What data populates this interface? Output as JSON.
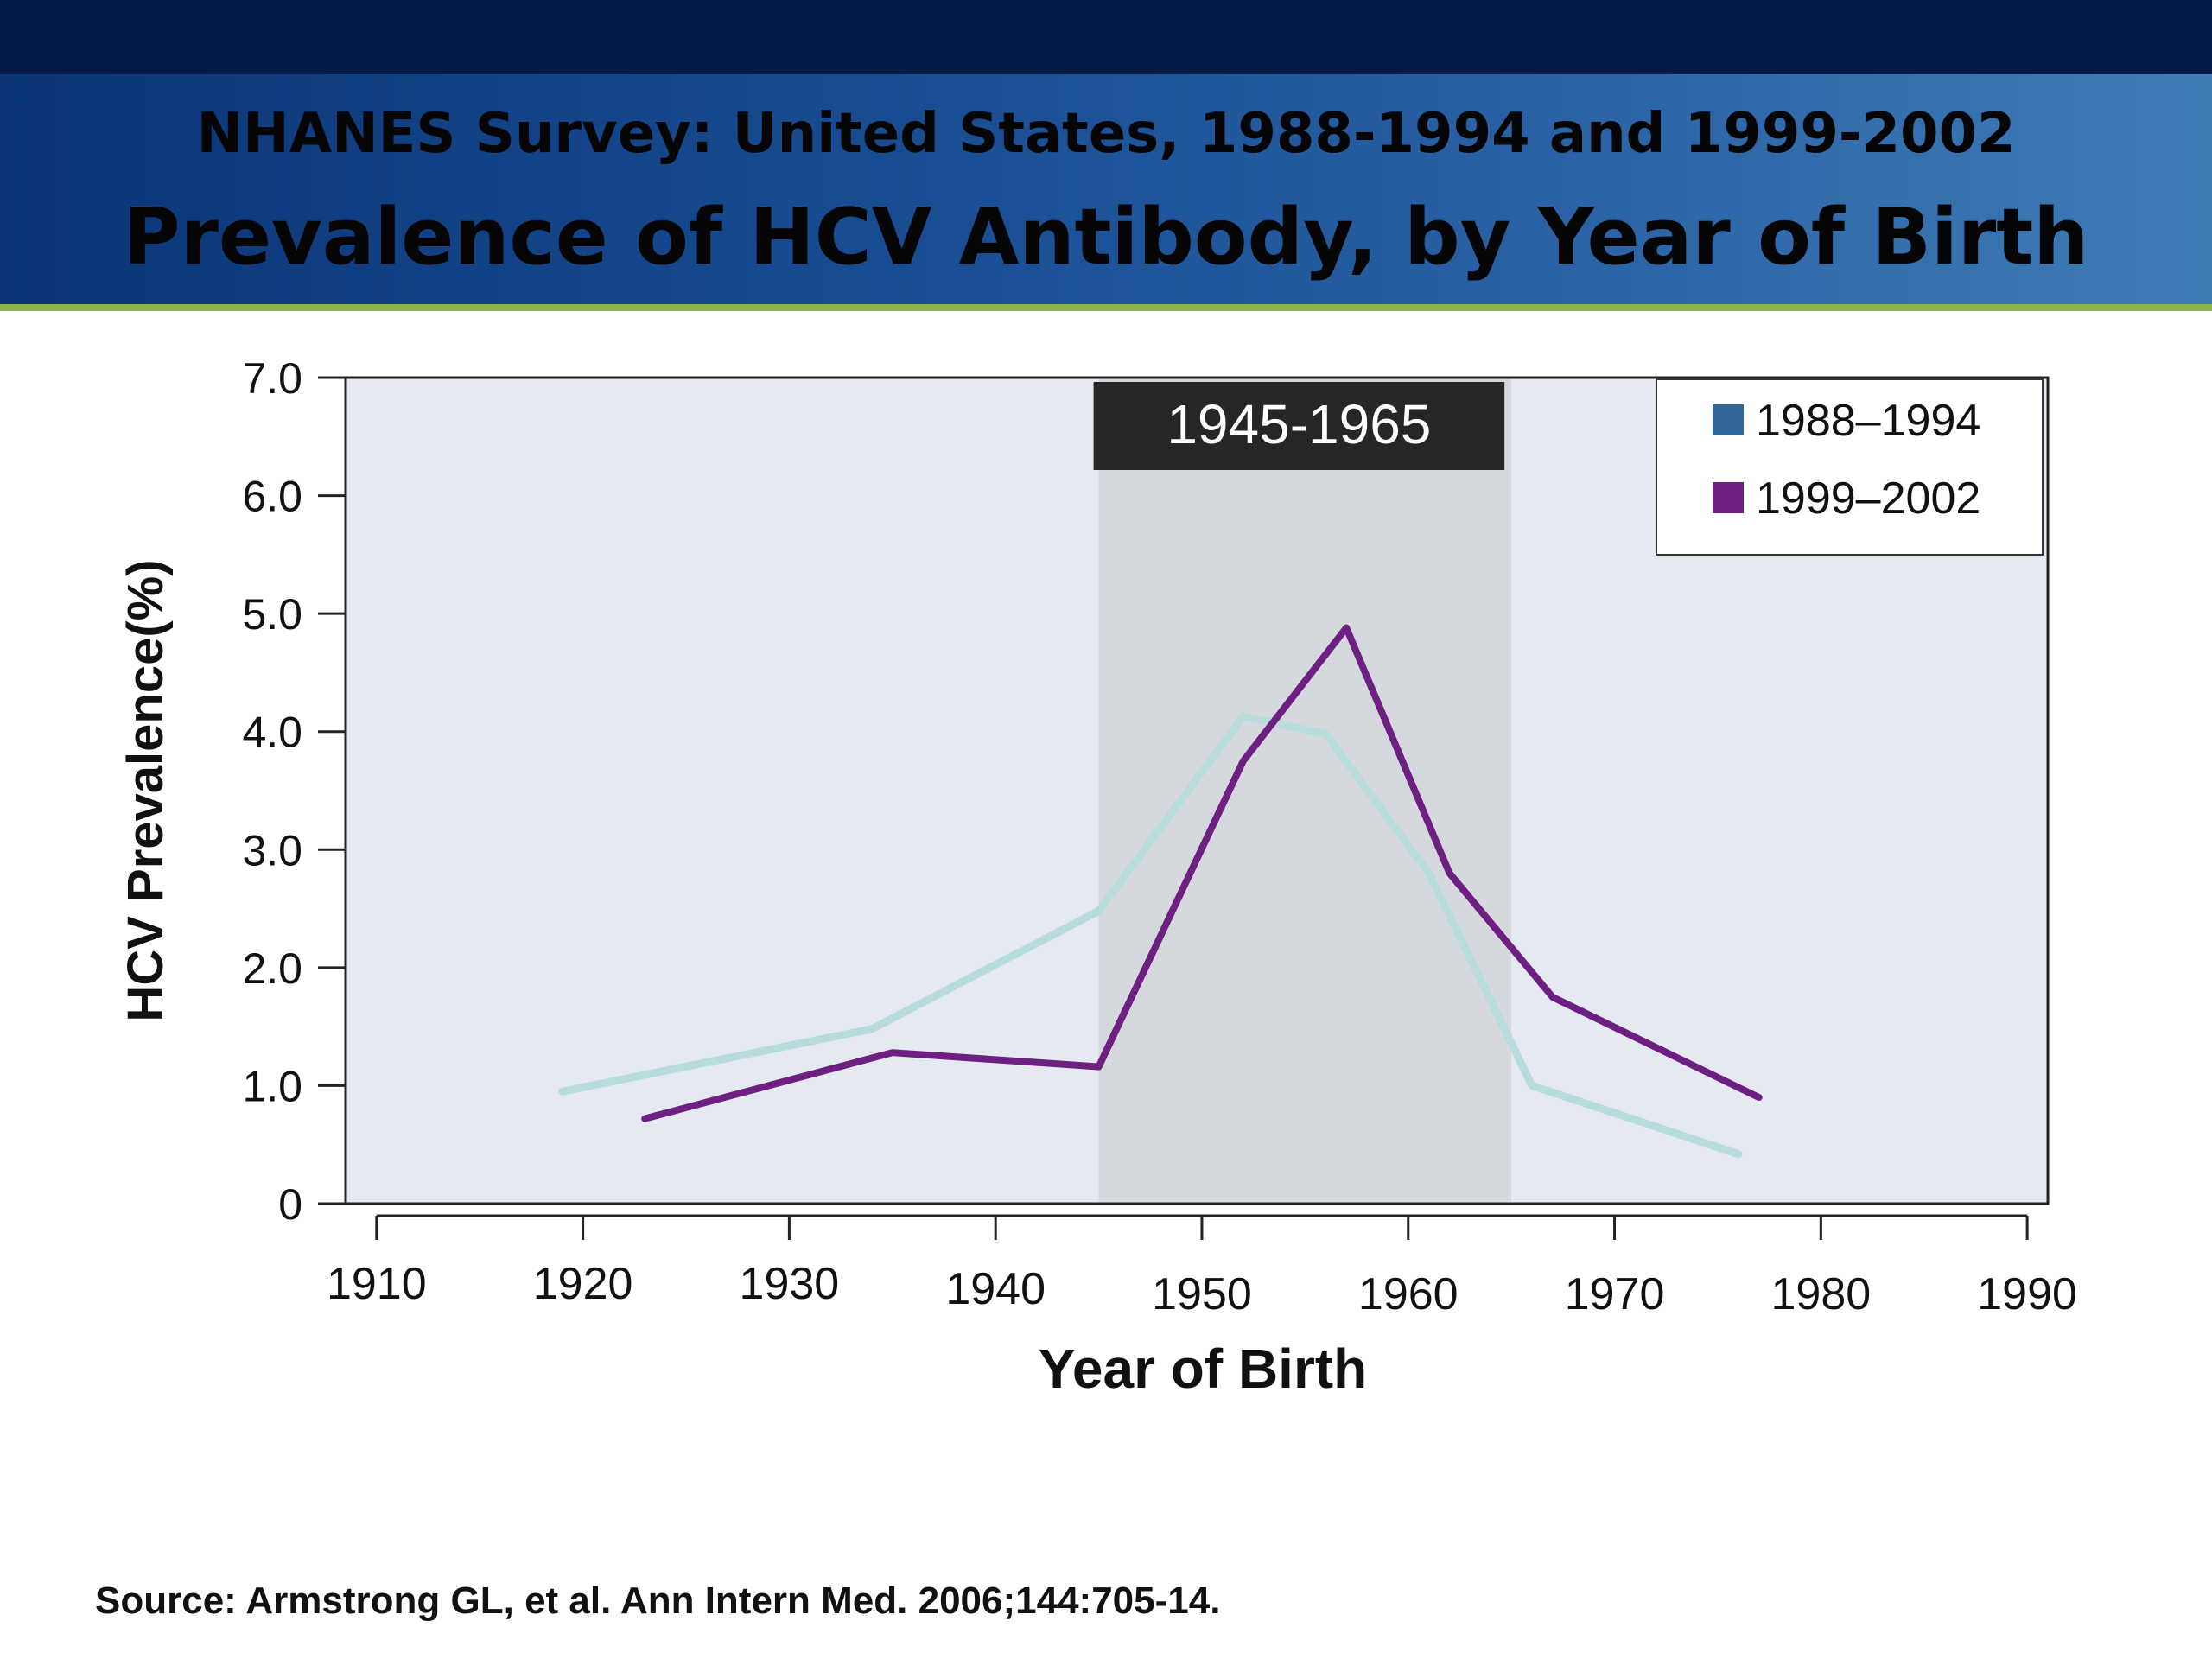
{
  "header": {
    "subtitle": "NHANES Survey: United States, 1988-1994 and 1999-2002",
    "title": "Prevalence of HCV Antibody, by Year of Birth"
  },
  "chart_data": {
    "type": "line",
    "xlabel": "Year of Birth",
    "ylabel": "HCV Prevalence(%)",
    "xlim": [
      1908.5,
      1991
    ],
    "ylim": [
      0,
      7
    ],
    "x_ticks": [
      1910,
      1920,
      1930,
      1940,
      1950,
      1960,
      1970,
      1980,
      1990
    ],
    "y_ticks": [
      0,
      1,
      2,
      3,
      4,
      5,
      6,
      7
    ],
    "y_tick_labels": [
      "0",
      "1.0",
      "2.0",
      "3.0",
      "4.0",
      "5.0",
      "6.0",
      "7.0"
    ],
    "highlight": {
      "label": "1945-1965",
      "x_range": [
        1945,
        1965
      ]
    },
    "legend_position": "top-right",
    "series": [
      {
        "name": "1988–1994",
        "color": "#b8dcdc",
        "legend_color": "#336699",
        "x": [
          1919,
          1934,
          1945,
          1952,
          1956,
          1961,
          1966,
          1976
        ],
        "y": [
          0.95,
          1.48,
          2.48,
          4.13,
          3.98,
          2.8,
          1.0,
          0.42
        ]
      },
      {
        "name": "1999–2002",
        "color": "#6e1f82",
        "legend_color": "#6e1f82",
        "x": [
          1923,
          1935,
          1945,
          1952,
          1957,
          1962,
          1967,
          1977
        ],
        "y": [
          0.72,
          1.28,
          1.16,
          3.75,
          4.88,
          2.8,
          1.75,
          0.9
        ]
      }
    ]
  },
  "source": "Source: Armstrong GL, et al.  Ann Intern Med. 2006;144:705-14."
}
